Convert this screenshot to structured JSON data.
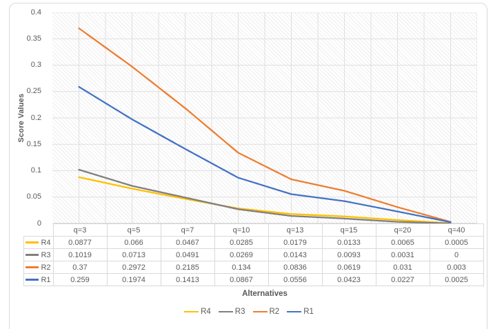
{
  "colors": {
    "text": "#595959",
    "grid": "#DFDFDF",
    "axis_line": "#BFBFBF",
    "frame_border": "#D9D9D9"
  },
  "chart_data": {
    "type": "line",
    "title": "",
    "xlabel": "Alternatives",
    "ylabel": "Score Values",
    "categories": [
      "q=3",
      "q=5",
      "q=7",
      "q=10",
      "q=13",
      "q=15",
      "q=20",
      "q=40"
    ],
    "series": [
      {
        "name": "R4",
        "color": "#FFC000",
        "values": [
          0.0877,
          0.066,
          0.0467,
          0.0285,
          0.0179,
          0.0133,
          0.0065,
          0.0005
        ]
      },
      {
        "name": "R3",
        "color": "#7F7F7F",
        "values": [
          0.1019,
          0.0713,
          0.0491,
          0.0269,
          0.0143,
          0.0093,
          0.0031,
          0
        ]
      },
      {
        "name": "R2",
        "color": "#ED7D31",
        "values": [
          0.37,
          0.2972,
          0.2185,
          0.134,
          0.0836,
          0.0619,
          0.031,
          0.003
        ]
      },
      {
        "name": "R1",
        "color": "#4472C4",
        "values": [
          0.259,
          0.1974,
          0.1413,
          0.0867,
          0.0556,
          0.0423,
          0.0227,
          0.0025
        ]
      }
    ],
    "ylim": [
      0,
      0.4
    ],
    "y_ticks": [
      0.4,
      0.35,
      0.3,
      0.25,
      0.2,
      0.15,
      0.1,
      0.05,
      0
    ],
    "grid": true,
    "plot_fill": "diagonal-hatch",
    "legend_position": "bottom",
    "legend_order": [
      "R4",
      "R3",
      "R2",
      "R1"
    ],
    "data_table": true
  }
}
